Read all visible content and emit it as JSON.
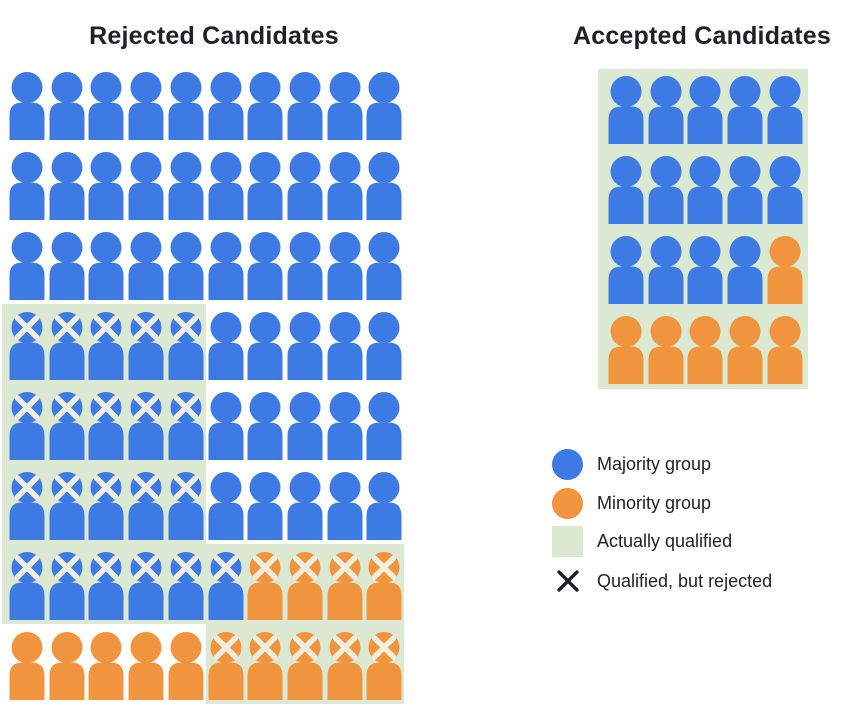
{
  "titles": {
    "rejected": "Rejected Candidates",
    "accepted": "Accepted Candidates"
  },
  "legend": {
    "items": [
      {
        "swatch": "majority-circle",
        "label": "Majority group"
      },
      {
        "swatch": "minority-circle",
        "label": "Minority group"
      },
      {
        "swatch": "qualified-square",
        "label": "Actually qualified"
      },
      {
        "swatch": "x-mark",
        "label": "Qualified, but rejected"
      }
    ]
  },
  "colors": {
    "majority": "#3D7AE4",
    "minority": "#F0943E",
    "qualified_bg": "#DBE8D2",
    "icon_x_mark": "#EFECE0",
    "legend_x_mark": "#202124",
    "text": "#202124"
  },
  "chart_data": {
    "type": "pictogram",
    "unit": "1 person icon = 1 candidate",
    "cell_codes": {
      "B": "majority group (blue person)",
      "O": "minority group (orange person)",
      "X suffix": "icon carries an X mark = qualified, but rejected",
      "qualified cells": "cells lying on the pale-green background are actually qualified"
    },
    "rejected": {
      "title": "Rejected Candidates",
      "columns": 10,
      "rows": [
        [
          "B",
          "B",
          "B",
          "B",
          "B",
          "B",
          "B",
          "B",
          "B",
          "B"
        ],
        [
          "B",
          "B",
          "B",
          "B",
          "B",
          "B",
          "B",
          "B",
          "B",
          "B"
        ],
        [
          "B",
          "B",
          "B",
          "B",
          "B",
          "B",
          "B",
          "B",
          "B",
          "B"
        ],
        [
          "BX",
          "BX",
          "BX",
          "BX",
          "BX",
          "B",
          "B",
          "B",
          "B",
          "B"
        ],
        [
          "BX",
          "BX",
          "BX",
          "BX",
          "BX",
          "B",
          "B",
          "B",
          "B",
          "B"
        ],
        [
          "BX",
          "BX",
          "BX",
          "BX",
          "BX",
          "B",
          "B",
          "B",
          "B",
          "B"
        ],
        [
          "BX",
          "BX",
          "BX",
          "BX",
          "BX",
          "BX",
          "OX",
          "OX",
          "OX",
          "OX"
        ],
        [
          "O",
          "O",
          "O",
          "O",
          "O",
          "OX",
          "OX",
          "OX",
          "OX",
          "OX"
        ]
      ],
      "qualified_cell_spans": [
        {
          "rows": [
            4,
            6
          ],
          "cols": [
            1,
            5
          ]
        },
        {
          "rows": [
            7,
            7
          ],
          "cols": [
            1,
            10
          ]
        },
        {
          "rows": [
            8,
            8
          ],
          "cols": [
            6,
            10
          ]
        }
      ],
      "counts": {
        "total": 80,
        "majority": 66,
        "minority": 14,
        "qualified_but_rejected_majority": 21,
        "qualified_but_rejected_minority": 9,
        "qualified_but_rejected_total": 30
      }
    },
    "accepted": {
      "title": "Accepted Candidates",
      "columns": 5,
      "rows": [
        [
          "B",
          "B",
          "B",
          "B",
          "B"
        ],
        [
          "B",
          "B",
          "B",
          "B",
          "B"
        ],
        [
          "B",
          "B",
          "B",
          "B",
          "O"
        ],
        [
          "O",
          "O",
          "O",
          "O",
          "O"
        ]
      ],
      "all_actually_qualified": true,
      "counts": {
        "total": 20,
        "majority": 14,
        "minority": 6
      }
    },
    "legend_entries": [
      "Majority group",
      "Minority group",
      "Actually qualified",
      "Qualified, but rejected"
    ],
    "legend_position": "right, below accepted chart"
  }
}
